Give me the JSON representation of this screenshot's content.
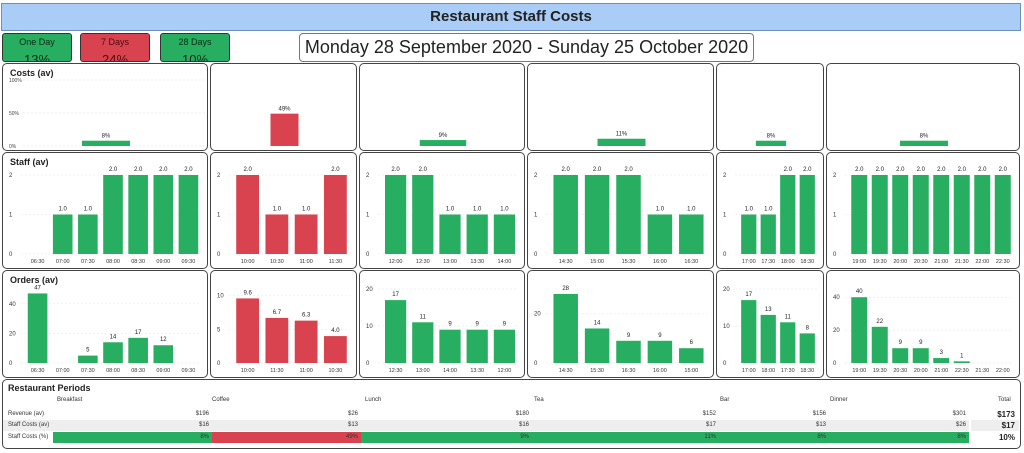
{
  "title": "Restaurant Staff Costs",
  "period_buttons": [
    {
      "label": "One Day",
      "value": "13%",
      "color": "green"
    },
    {
      "label": "7 Days",
      "value": "24%",
      "color": "red"
    },
    {
      "label": "28 Days",
      "value": "10%",
      "color": "green"
    }
  ],
  "date_range": "Monday 28 September 2020 - Sunday 25 October 2020",
  "row_labels": {
    "costs": "Costs (av)",
    "staff": "Staff (av)",
    "orders": "Orders (av)"
  },
  "colors": {
    "green": "#27ae60",
    "red": "#d9434f",
    "panel_border": "#444444"
  },
  "chart_data": [
    {
      "type": "bar",
      "row": "costs",
      "period": "Breakfast",
      "values": [
        8
      ],
      "labels": [
        "8%"
      ],
      "ylim": [
        0,
        100
      ],
      "yticks": [
        "0%",
        "50%",
        "100%"
      ],
      "color": "green"
    },
    {
      "type": "bar",
      "row": "costs",
      "period": "Coffee",
      "values": [
        49
      ],
      "labels": [
        "49%"
      ],
      "ylim": [
        0,
        100
      ],
      "color": "red"
    },
    {
      "type": "bar",
      "row": "costs",
      "period": "Lunch",
      "values": [
        9
      ],
      "labels": [
        "9%"
      ],
      "ylim": [
        0,
        100
      ],
      "color": "green"
    },
    {
      "type": "bar",
      "row": "costs",
      "period": "Tea",
      "values": [
        11
      ],
      "labels": [
        "11%"
      ],
      "ylim": [
        0,
        100
      ],
      "color": "green"
    },
    {
      "type": "bar",
      "row": "costs",
      "period": "Bar",
      "values": [
        8
      ],
      "labels": [
        "8%"
      ],
      "ylim": [
        0,
        100
      ],
      "color": "green"
    },
    {
      "type": "bar",
      "row": "costs",
      "period": "Dinner",
      "values": [
        8
      ],
      "labels": [
        "8%"
      ],
      "ylim": [
        0,
        100
      ],
      "color": "green"
    },
    {
      "type": "bar",
      "row": "staff",
      "period": "Breakfast",
      "categories": [
        "06:30",
        "07:00",
        "07:30",
        "08:00",
        "08:30",
        "09:00",
        "09:30"
      ],
      "values": [
        0,
        1,
        1,
        2,
        2,
        2,
        2
      ],
      "labels": [
        "",
        "1.0",
        "1.0",
        "2.0",
        "2.0",
        "2.0",
        "2.0"
      ],
      "ylim": [
        0,
        2
      ],
      "yticks": [
        "0",
        "1",
        "2"
      ],
      "color": "green"
    },
    {
      "type": "bar",
      "row": "staff",
      "period": "Coffee",
      "categories": [
        "10:00",
        "10:30",
        "11:00",
        "11:30"
      ],
      "values": [
        2,
        1,
        1,
        2
      ],
      "labels": [
        "2.0",
        "1.0",
        "1.0",
        "2.0"
      ],
      "ylim": [
        0,
        2
      ],
      "yticks": [
        "0",
        "1",
        "2"
      ],
      "color": "red"
    },
    {
      "type": "bar",
      "row": "staff",
      "period": "Lunch",
      "categories": [
        "12:00",
        "12:30",
        "13:00",
        "13:30",
        "14:00"
      ],
      "values": [
        2,
        2,
        1,
        1,
        1
      ],
      "labels": [
        "2.0",
        "2.0",
        "1.0",
        "1.0",
        "1.0"
      ],
      "ylim": [
        0,
        2
      ],
      "yticks": [
        "0",
        "1",
        "2"
      ],
      "color": "green"
    },
    {
      "type": "bar",
      "row": "staff",
      "period": "Tea",
      "categories": [
        "14:30",
        "15:00",
        "15:30",
        "16:00",
        "16:30"
      ],
      "values": [
        2,
        2,
        2,
        1,
        1
      ],
      "labels": [
        "2.0",
        "2.0",
        "2.0",
        "1.0",
        "1.0"
      ],
      "ylim": [
        0,
        2
      ],
      "yticks": [
        "0",
        "1",
        "2"
      ],
      "color": "green"
    },
    {
      "type": "bar",
      "row": "staff",
      "period": "Bar",
      "categories": [
        "17:00",
        "17:30",
        "18:00",
        "18:30"
      ],
      "values": [
        1,
        1,
        2,
        2
      ],
      "labels": [
        "1.0",
        "1.0",
        "2.0",
        "2.0"
      ],
      "ylim": [
        0,
        2
      ],
      "yticks": [
        "0",
        "1",
        "2"
      ],
      "color": "green"
    },
    {
      "type": "bar",
      "row": "staff",
      "period": "Dinner",
      "categories": [
        "19:00",
        "19:30",
        "20:00",
        "20:30",
        "21:00",
        "21:30",
        "22:00",
        "22:30"
      ],
      "values": [
        2,
        2,
        2,
        2,
        2,
        2,
        2,
        2
      ],
      "labels": [
        "2.0",
        "2.0",
        "2.0",
        "2.0",
        "2.0",
        "2.0",
        "2.0",
        "2.0"
      ],
      "ylim": [
        0,
        2
      ],
      "yticks": [
        "0",
        "1",
        "2"
      ],
      "color": "green"
    },
    {
      "type": "bar",
      "row": "orders",
      "period": "Breakfast",
      "categories": [
        "06:30",
        "07:00",
        "07:30",
        "08:00",
        "08:30",
        "09:00",
        "09:30"
      ],
      "values": [
        47,
        0,
        5,
        14,
        17,
        12,
        0
      ],
      "labels": [
        "47",
        "",
        "5",
        "14",
        "17",
        "12",
        ""
      ],
      "ylim": [
        0,
        50
      ],
      "yticks": [
        "0",
        "20",
        "40"
      ],
      "ytick_values": [
        0,
        20,
        40
      ],
      "color": "green"
    },
    {
      "type": "bar",
      "row": "orders",
      "period": "Coffee",
      "categories": [
        "10:00",
        "11:30",
        "11:00",
        "10:30"
      ],
      "values": [
        9.6,
        6.7,
        6.3,
        4.0
      ],
      "labels": [
        "9.6",
        "6.7",
        "6.3",
        "4.0"
      ],
      "ylim": [
        0,
        11
      ],
      "yticks": [
        "0",
        "5",
        "10"
      ],
      "ytick_values": [
        0,
        5,
        10
      ],
      "color": "red"
    },
    {
      "type": "bar",
      "row": "orders",
      "period": "Lunch",
      "categories": [
        "12:30",
        "13:00",
        "14:00",
        "13:30",
        "12:00"
      ],
      "values": [
        17,
        11,
        9,
        9,
        9
      ],
      "labels": [
        "17",
        "11",
        "9",
        "9",
        "9"
      ],
      "ylim": [
        0,
        20
      ],
      "yticks": [
        "0",
        "10",
        "20"
      ],
      "ytick_values": [
        0,
        10,
        20
      ],
      "color": "green"
    },
    {
      "type": "bar",
      "row": "orders",
      "period": "Tea",
      "categories": [
        "14:30",
        "15:30",
        "16:30",
        "16:00",
        "15:00"
      ],
      "values": [
        28,
        14,
        9,
        9,
        6
      ],
      "labels": [
        "28",
        "14",
        "9",
        "9",
        "6"
      ],
      "ylim": [
        0,
        30
      ],
      "yticks": [
        "0",
        "20"
      ],
      "ytick_values": [
        0,
        20
      ],
      "color": "green"
    },
    {
      "type": "bar",
      "row": "orders",
      "period": "Bar",
      "categories": [
        "17:00",
        "18:00",
        "17:30",
        "18:30"
      ],
      "values": [
        17,
        13,
        11,
        8
      ],
      "labels": [
        "17",
        "13",
        "11",
        "8"
      ],
      "ylim": [
        0,
        20
      ],
      "yticks": [
        "0",
        "10",
        "20"
      ],
      "ytick_values": [
        0,
        10,
        20
      ],
      "color": "green"
    },
    {
      "type": "bar",
      "row": "orders",
      "period": "Dinner",
      "categories": [
        "19:00",
        "19:30",
        "20:30",
        "20:00",
        "21:00",
        "22:30",
        "21:30",
        "22:00"
      ],
      "values": [
        40,
        22,
        9,
        9,
        3,
        1,
        0,
        0
      ],
      "labels": [
        "40",
        "22",
        "9",
        "9",
        "3",
        "1",
        "",
        ""
      ],
      "ylim": [
        0,
        45
      ],
      "yticks": [
        "0",
        "20",
        "40"
      ],
      "ytick_values": [
        0,
        20,
        40
      ],
      "color": "green"
    }
  ],
  "periods_table": {
    "title": "Restaurant Periods",
    "headers": [
      "Breakfast",
      "Coffee",
      "Lunch",
      "Tea",
      "Bar",
      "Dinner"
    ],
    "total_header": "Total",
    "rows": [
      {
        "label": "Revenue (av)",
        "values": [
          "$196",
          "$26",
          "$180",
          "$152",
          "$156",
          "$301"
        ],
        "total": "$173"
      },
      {
        "label": "Staff Costs (av)",
        "values": [
          "$16",
          "$13",
          "$16",
          "$17",
          "$13",
          "$26"
        ],
        "total": "$17"
      },
      {
        "label": "Staff Costs (%)",
        "values": [
          "8%",
          "49%",
          "9%",
          "11%",
          "8%",
          "8%"
        ],
        "total": "10%",
        "colors": [
          "green",
          "red",
          "green",
          "green",
          "green",
          "green"
        ]
      }
    ]
  }
}
